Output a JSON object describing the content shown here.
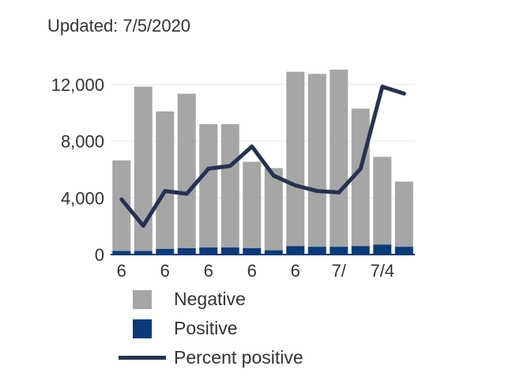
{
  "header": {
    "updated_text": "Updated: 7/5/2020"
  },
  "colors": {
    "negative": "#a6a6a6",
    "positive": "#0a3a7a",
    "percent_line": "#26324f",
    "grid": "#e6e6e6"
  },
  "chart_data": {
    "type": "bar",
    "stacked": true,
    "y_ticks": [
      "0",
      "4,000",
      "8,000",
      "12,000"
    ],
    "ylim": [
      0,
      13500
    ],
    "x_tick_labels": [
      "6",
      "6",
      "6",
      "6",
      "6",
      "7/",
      "7/4"
    ],
    "series": [
      {
        "name": "Negative",
        "values": [
          6400,
          11600,
          9700,
          10900,
          8700,
          8700,
          6100,
          5800,
          12300,
          12200,
          12500,
          9700,
          6200,
          4600
        ]
      },
      {
        "name": "Positive",
        "values": [
          250,
          250,
          400,
          450,
          500,
          500,
          450,
          300,
          600,
          550,
          550,
          600,
          700,
          550
        ]
      },
      {
        "name": "Percent positive",
        "type": "line",
        "values": [
          4.4,
          2.5,
          5.0,
          4.8,
          6.6,
          6.8,
          8.2,
          6.1,
          5.4,
          5.0,
          4.9,
          6.6,
          12.5,
          12.0
        ]
      }
    ]
  },
  "legend": {
    "negative_label": "Negative",
    "positive_label": "Positive",
    "percent_label": "Percent positive"
  }
}
